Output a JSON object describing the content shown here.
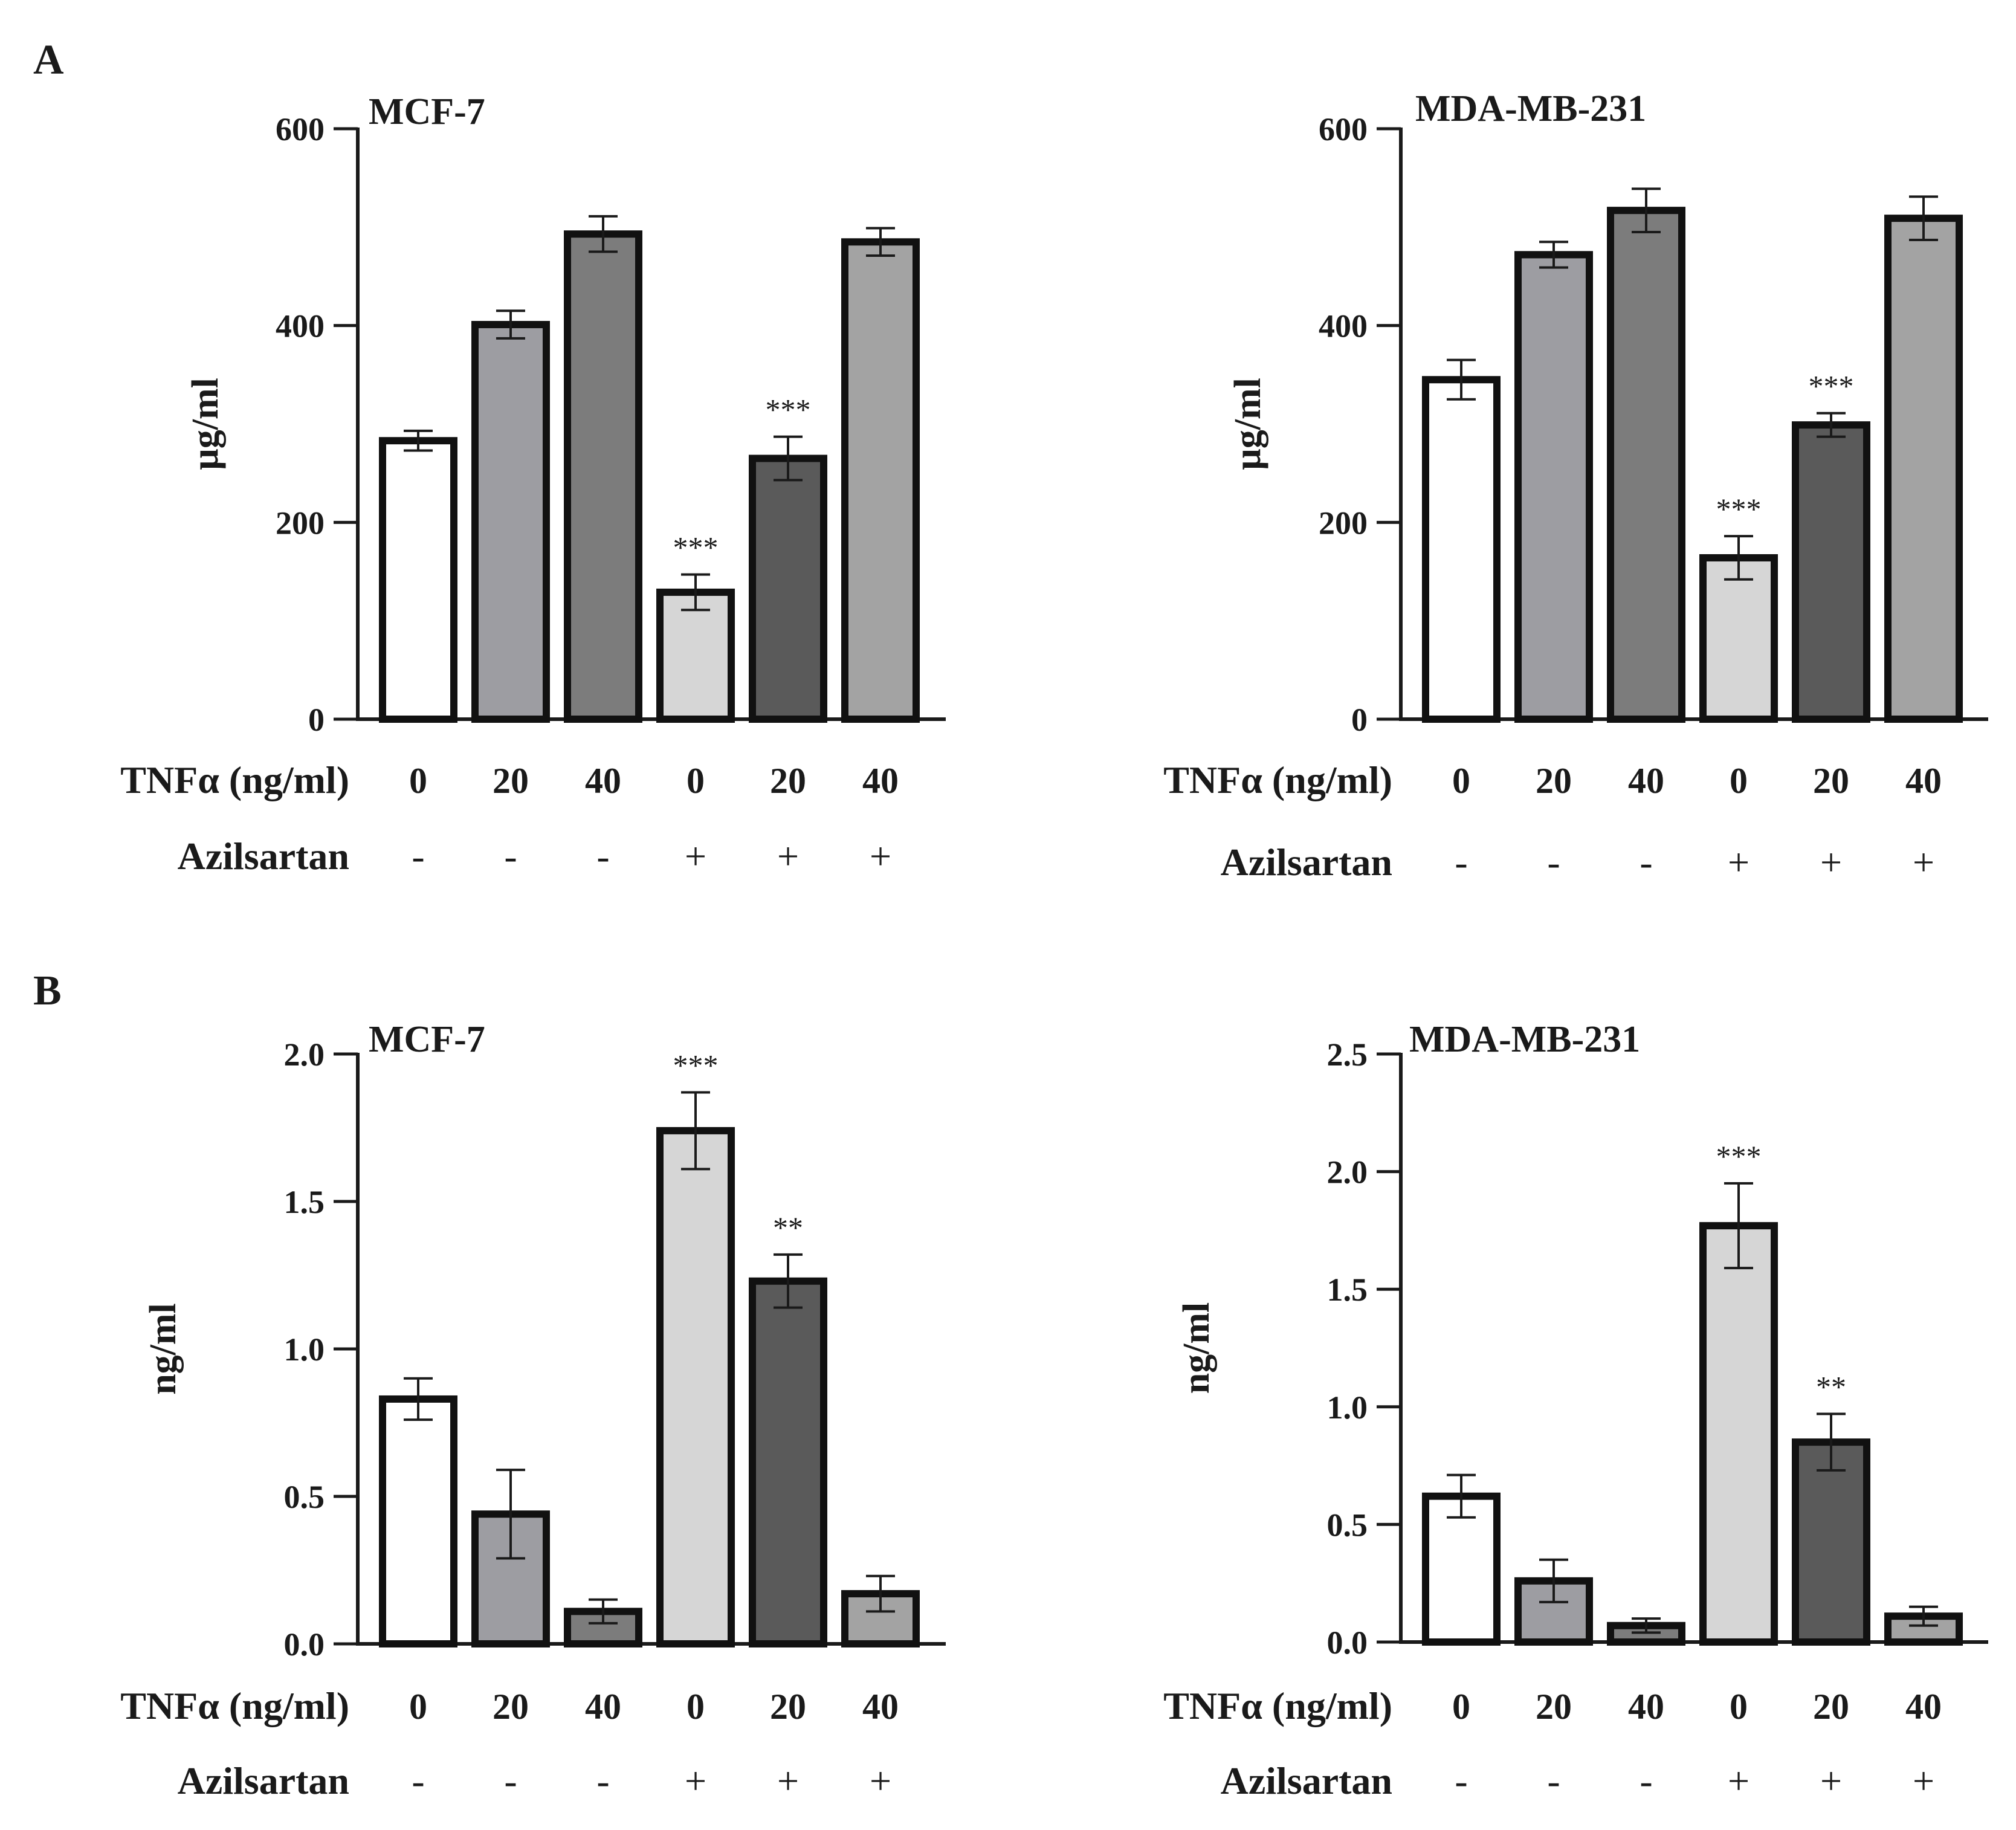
{
  "figure": {
    "panel_labels": [
      "A",
      "B"
    ],
    "colors": {
      "axis": "#1a1a1a",
      "bar_outline": "#111111",
      "fills": [
        "#ffffff",
        "#9d9da2",
        "#7c7c7c",
        "#d6d6d6",
        "#5a5a5a",
        "#a3a3a3"
      ]
    }
  },
  "chart_data": [
    {
      "panel": "A",
      "type": "bar",
      "title": "MCF-7",
      "ylabel": "µg/ml",
      "ylim": [
        0,
        600
      ],
      "yticks": [
        "0",
        "200",
        "400",
        "600"
      ],
      "row_labels": [
        "TNFα (ng/ml)",
        "Azilsartan"
      ],
      "categories": [
        "0",
        "20",
        "40",
        "0",
        "20",
        "40"
      ],
      "azilsartan": [
        "-",
        "-",
        "-",
        "+",
        "+",
        "+"
      ],
      "values": [
        283,
        401,
        493,
        129,
        265,
        485
      ],
      "errors": [
        10,
        14,
        18,
        18,
        22,
        14
      ],
      "significance": [
        "",
        "",
        "",
        "***",
        "***",
        ""
      ]
    },
    {
      "panel": "A",
      "type": "bar",
      "title": "MDA-MB-231",
      "ylabel": "µg/ml",
      "ylim": [
        0,
        600
      ],
      "yticks": [
        "0",
        "200",
        "400",
        "600"
      ],
      "row_labels": [
        "TNFα (ng/ml)",
        "Azilsartan"
      ],
      "categories": [
        "0",
        "20",
        "40",
        "0",
        "20",
        "40"
      ],
      "azilsartan": [
        "-",
        "-",
        "-",
        "+",
        "+",
        "+"
      ],
      "values": [
        345,
        472,
        517,
        164,
        299,
        509
      ],
      "errors": [
        20,
        13,
        22,
        22,
        12,
        22
      ],
      "significance": [
        "",
        "",
        "",
        "***",
        "***",
        ""
      ]
    },
    {
      "panel": "B",
      "type": "bar",
      "title": "MCF-7",
      "ylabel": "ng/ml",
      "ylim": [
        0,
        2.0
      ],
      "yticks": [
        "0.0",
        "0.5",
        "1.0",
        "1.5",
        "2.0"
      ],
      "row_labels": [
        "TNFα (ng/ml)",
        "Azilsartan"
      ],
      "categories": [
        "0",
        "20",
        "40",
        "0",
        "20",
        "40"
      ],
      "azilsartan": [
        "-",
        "-",
        "-",
        "+",
        "+",
        "+"
      ],
      "values": [
        0.83,
        0.44,
        0.11,
        1.74,
        1.23,
        0.17
      ],
      "errors": [
        0.07,
        0.15,
        0.04,
        0.13,
        0.09,
        0.06
      ],
      "significance": [
        "",
        "",
        "",
        "***",
        "**",
        ""
      ]
    },
    {
      "panel": "B",
      "type": "bar",
      "title": "MDA-MB-231",
      "ylabel": "ng/ml",
      "ylim": [
        0,
        2.5
      ],
      "yticks": [
        "0.0",
        "0.5",
        "1.0",
        "1.5",
        "2.0",
        "2.5"
      ],
      "row_labels": [
        "TNFα (ng/ml)",
        "Azilsartan"
      ],
      "categories": [
        "0",
        "20",
        "40",
        "0",
        "20",
        "40"
      ],
      "azilsartan": [
        "-",
        "-",
        "-",
        "+",
        "+",
        "+"
      ],
      "values": [
        0.62,
        0.26,
        0.07,
        1.77,
        0.85,
        0.11
      ],
      "errors": [
        0.09,
        0.09,
        0.03,
        0.18,
        0.12,
        0.04
      ],
      "significance": [
        "",
        "",
        "",
        "***",
        "**",
        ""
      ]
    }
  ]
}
